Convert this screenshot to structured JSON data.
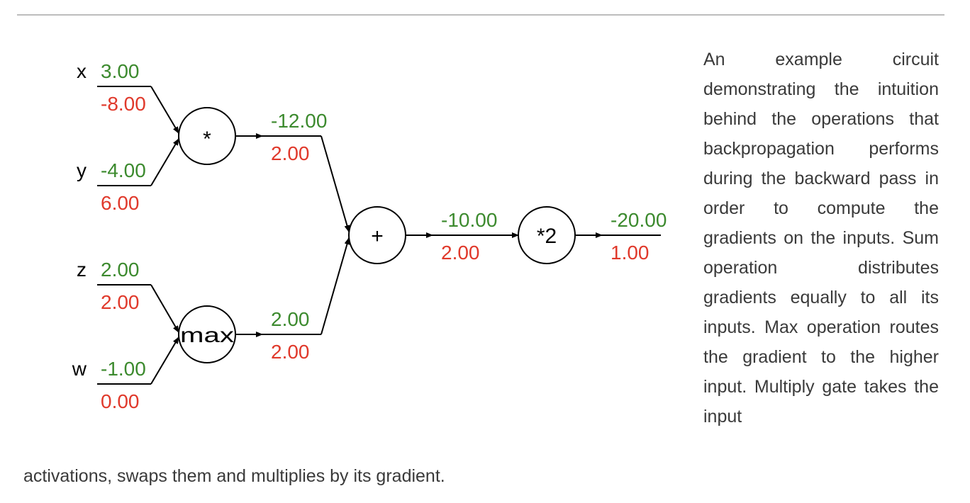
{
  "colors": {
    "forward_value": "#3c8a2e",
    "gradient_value": "#e0392b",
    "caption_text": "#3a3a3a",
    "rule": "#bdbdbd"
  },
  "circuit": {
    "inputs": [
      {
        "name": "x",
        "value": "3.00",
        "gradient": "-8.00"
      },
      {
        "name": "y",
        "value": "-4.00",
        "gradient": "6.00"
      },
      {
        "name": "z",
        "value": "2.00",
        "gradient": "2.00"
      },
      {
        "name": "w",
        "value": "-1.00",
        "gradient": "0.00"
      }
    ],
    "gates": {
      "multiply": {
        "label": "*",
        "value": "-12.00",
        "gradient": "2.00"
      },
      "max": {
        "label": "max",
        "value": "2.00",
        "gradient": "2.00"
      },
      "add": {
        "label": "+",
        "value": "-10.00",
        "gradient": "2.00"
      },
      "scale": {
        "label": "*2",
        "value": "-20.00",
        "gradient": "1.00"
      }
    }
  },
  "caption": {
    "main": "An example circuit demonstrating the intuition behind the operations that backpropagation performs during the backward pass in order to compute the gradients on the inputs. Sum operation distributes gradients equally to all its inputs. Max operation routes the gradient to the higher input. Multiply gate takes the input",
    "tail": "activations, swaps them and multiplies by its gradient."
  }
}
